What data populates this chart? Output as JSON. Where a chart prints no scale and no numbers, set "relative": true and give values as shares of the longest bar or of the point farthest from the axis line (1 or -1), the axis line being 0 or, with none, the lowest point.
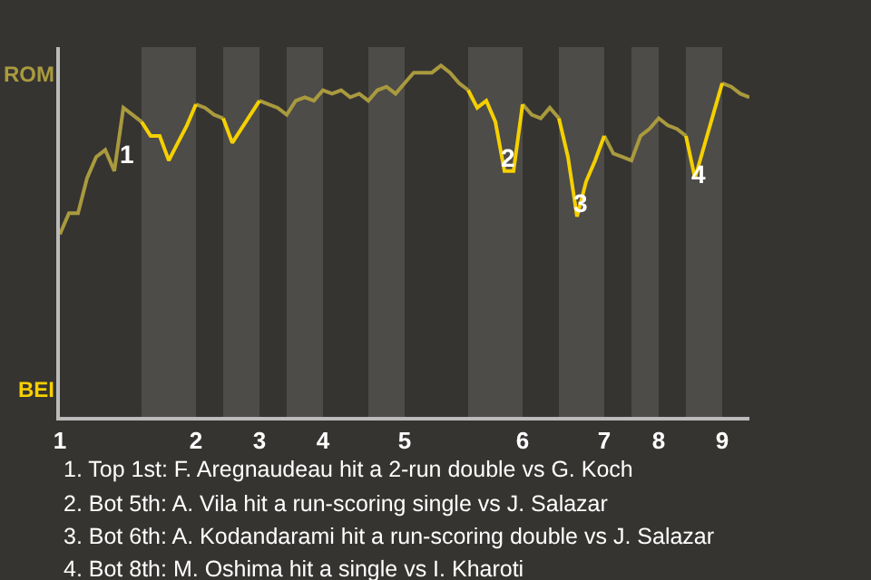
{
  "chart_data": {
    "type": "line",
    "relative": true,
    "categories": [
      "1",
      null,
      null,
      null,
      null,
      null,
      null,
      null,
      null,
      null,
      null,
      null,
      null,
      null,
      null,
      "2",
      null,
      null,
      null,
      null,
      null,
      null,
      "3",
      null,
      null,
      null,
      null,
      null,
      null,
      "4",
      null,
      null,
      null,
      null,
      null,
      null,
      null,
      null,
      "5",
      null,
      null,
      null,
      null,
      null,
      null,
      null,
      null,
      null,
      null,
      null,
      null,
      "6",
      null,
      null,
      null,
      null,
      null,
      null,
      null,
      null,
      "7",
      null,
      null,
      null,
      null,
      null,
      "8",
      null,
      null,
      null,
      null,
      null,
      null,
      "9",
      null,
      null,
      null
    ],
    "series": [
      {
        "color": "#a99a3e",
        "values": [
          0.52,
          0.58,
          0.58,
          0.68,
          0.74,
          0.76,
          0.7,
          0.88,
          0.86,
          0.84,
          null,
          null,
          null,
          null,
          null,
          0.89,
          0.88,
          0.86,
          0.85,
          null,
          null,
          null,
          0.9,
          0.89,
          0.88,
          0.86,
          0.9,
          0.91,
          0.9,
          0.93,
          0.92,
          0.93,
          0.91,
          0.92,
          0.9,
          0.93,
          0.94,
          0.92,
          0.95,
          0.98,
          0.98,
          0.98,
          1,
          0.98,
          0.95,
          0.93,
          null,
          null,
          null,
          null,
          null,
          0.89,
          0.86,
          0.85,
          0.88,
          0.85,
          null,
          null,
          null,
          null,
          0.8,
          0.75,
          0.74,
          0.73,
          0.8,
          0.82,
          0.85,
          0.83,
          0.82,
          0.8,
          null,
          null,
          null,
          0.95,
          0.94,
          0.92,
          0.91
        ]
      },
      {
        "color": "#f5d000",
        "values": [
          null,
          null,
          null,
          null,
          null,
          null,
          null,
          null,
          null,
          0.84,
          0.8,
          0.8,
          0.73,
          0.78,
          0.83,
          0.89,
          null,
          null,
          0.85,
          0.78,
          0.82,
          0.86,
          0.9,
          null,
          null,
          null,
          null,
          null,
          null,
          null,
          null,
          null,
          null,
          null,
          null,
          null,
          null,
          null,
          null,
          null,
          null,
          null,
          null,
          null,
          null,
          0.93,
          0.88,
          0.9,
          0.84,
          0.7,
          0.7,
          0.89,
          null,
          null,
          null,
          0.85,
          0.74,
          0.57,
          0.67,
          0.73,
          0.8,
          null,
          null,
          null,
          null,
          null,
          null,
          null,
          null,
          0.8,
          0.68,
          0.77,
          0.86,
          0.95,
          null,
          null,
          null
        ]
      }
    ],
    "annotations": [
      "ROM",
      "BEI",
      "1",
      "2",
      "3",
      "4",
      "1. Top 1st: F. Aregnaudeau hit a 2-run double vs G. Koch",
      "2. Bot 5th: A. Vila hit a run-scoring single vs J. Salazar",
      "3. Bot 6th: A. Kodandarami hit a run-scoring double vs J. Salazar",
      "4. Bot 8th: M. Oshima hit a single vs I. Kharoti"
    ]
  }
}
